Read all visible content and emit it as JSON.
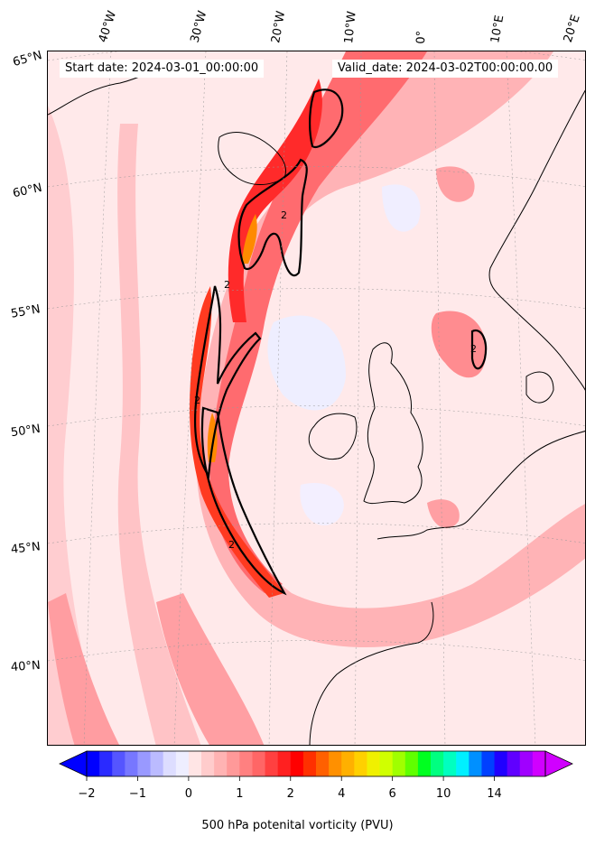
{
  "header": {
    "start_date": "Start date: 2024-03-01_00:00:00",
    "valid_date": "Valid_date: 2024-03-02T00:00:00.00"
  },
  "gridlines": {
    "longitudes": [
      "40°W",
      "30°W",
      "20°W",
      "10°W",
      "0°",
      "10°E",
      "20°E"
    ],
    "latitudes": [
      "65°N",
      "60°N",
      "55°N",
      "50°N",
      "45°N",
      "40°N"
    ]
  },
  "colorbar": {
    "label": "500 hPa potenital vorticity (PVU)",
    "ticks": [
      "−2",
      "−1",
      "0",
      "1",
      "2",
      "4",
      "6",
      "10",
      "14"
    ],
    "colors": [
      "#0000ff",
      "#2a2aff",
      "#5555ff",
      "#7777ff",
      "#9999ff",
      "#bbbbff",
      "#ddddff",
      "#eeeeff",
      "#ffe5e5",
      "#ffcccc",
      "#ffb3b3",
      "#ff9999",
      "#ff8080",
      "#ff6666",
      "#ff4040",
      "#ff2020",
      "#ff0000",
      "#ff3000",
      "#ff6000",
      "#ff9000",
      "#ffb000",
      "#ffd000",
      "#f0f000",
      "#d0ff00",
      "#a0ff00",
      "#60ff00",
      "#00ff20",
      "#00ff80",
      "#00ffc0",
      "#00f0ff",
      "#0090ff",
      "#0040ff",
      "#2000ff",
      "#6000ff",
      "#a000ff",
      "#d000ff"
    ],
    "extend": "both"
  },
  "contour_level_label": "2",
  "colors": {
    "background_low_pv": "#ffe9ea",
    "negative_pv": "#eeeeff",
    "high_pv": "#ff2020",
    "coastline": "#000000"
  }
}
